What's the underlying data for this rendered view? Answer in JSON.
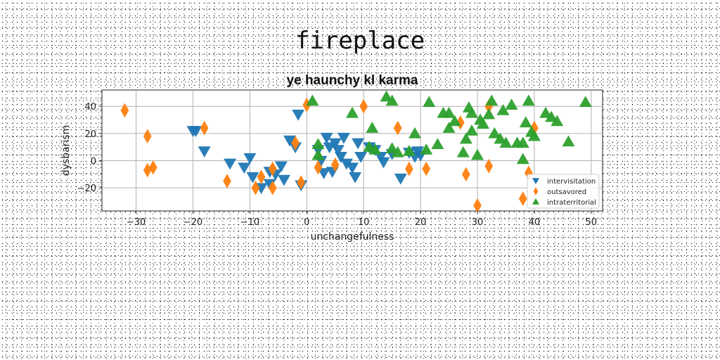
{
  "page": {
    "title": "fireplace"
  },
  "chart_data": {
    "type": "scatter",
    "title": "ye haunchy kl karma",
    "xlabel": "unchangefulness",
    "ylabel": "dysbarism",
    "xlim": [
      -36,
      52
    ],
    "ylim": [
      -37,
      52
    ],
    "xticks": [
      -30,
      -20,
      -10,
      0,
      10,
      20,
      30,
      40,
      50
    ],
    "yticks": [
      -20,
      0,
      20,
      40
    ],
    "grid": true,
    "legend_position": "lower-right",
    "series": [
      {
        "name": "intervisitation",
        "marker": "triangle-down",
        "color": "#1f77b4",
        "points": [
          [
            -20,
            22
          ],
          [
            -19.5,
            22
          ],
          [
            -18,
            7
          ],
          [
            -13.5,
            -2
          ],
          [
            -11,
            -5
          ],
          [
            -10,
            2
          ],
          [
            -9.5,
            -12
          ],
          [
            -8,
            -20
          ],
          [
            -6.5,
            -8
          ],
          [
            -6.5,
            -17
          ],
          [
            -5.5,
            -10
          ],
          [
            -4.5,
            -4
          ],
          [
            -4,
            -14
          ],
          [
            -3,
            15
          ],
          [
            -2,
            10
          ],
          [
            -1.5,
            34
          ],
          [
            -1,
            -18
          ],
          [
            2,
            8
          ],
          [
            2.5,
            0
          ],
          [
            3,
            -9
          ],
          [
            3.5,
            17
          ],
          [
            4,
            10
          ],
          [
            4.5,
            -8
          ],
          [
            5,
            13
          ],
          [
            5.5,
            8
          ],
          [
            6,
            3
          ],
          [
            6.5,
            17
          ],
          [
            7,
            -2
          ],
          [
            8,
            -5
          ],
          [
            8.5,
            -12
          ],
          [
            9,
            13
          ],
          [
            9.5,
            3
          ],
          [
            11,
            10
          ],
          [
            12,
            8
          ],
          [
            13,
            3
          ],
          [
            13.5,
            -1
          ],
          [
            15,
            5
          ],
          [
            16.5,
            -13
          ],
          [
            18,
            6
          ],
          [
            19,
            3
          ],
          [
            19.5,
            7
          ],
          [
            20,
            4
          ]
        ]
      },
      {
        "name": "outsavored",
        "marker": "diamond",
        "color": "#ff7f0e",
        "points": [
          [
            -32,
            37
          ],
          [
            -28,
            18
          ],
          [
            -28,
            -7
          ],
          [
            -27,
            -5
          ],
          [
            -18,
            24
          ],
          [
            -14,
            -15
          ],
          [
            -9,
            -20
          ],
          [
            -8,
            -12
          ],
          [
            -6,
            -6
          ],
          [
            -6,
            -20
          ],
          [
            -2,
            13
          ],
          [
            -1,
            -16
          ],
          [
            0,
            41
          ],
          [
            2,
            -5
          ],
          [
            5,
            -3
          ],
          [
            10,
            40
          ],
          [
            16,
            24
          ],
          [
            18,
            -6
          ],
          [
            21,
            -6
          ],
          [
            27,
            28
          ],
          [
            28,
            -10
          ],
          [
            30,
            -33
          ],
          [
            32,
            -4
          ],
          [
            32,
            40
          ],
          [
            38,
            -28
          ],
          [
            39,
            -9
          ],
          [
            40,
            24
          ]
        ]
      },
      {
        "name": "intraterritorial",
        "marker": "triangle-up",
        "color": "#2ca02c",
        "points": [
          [
            1,
            44
          ],
          [
            2,
            12
          ],
          [
            2,
            4
          ],
          [
            8,
            35
          ],
          [
            11,
            10
          ],
          [
            11.5,
            24
          ],
          [
            12,
            8
          ],
          [
            14,
            47
          ],
          [
            15,
            44
          ],
          [
            15,
            9
          ],
          [
            16,
            6
          ],
          [
            18,
            7
          ],
          [
            19,
            20
          ],
          [
            21,
            8
          ],
          [
            21.5,
            43
          ],
          [
            23,
            12
          ],
          [
            24,
            35
          ],
          [
            25,
            35
          ],
          [
            25,
            24
          ],
          [
            26,
            29
          ],
          [
            27.5,
            6
          ],
          [
            28,
            16
          ],
          [
            28.5,
            39
          ],
          [
            29,
            35
          ],
          [
            29,
            22
          ],
          [
            30,
            4
          ],
          [
            30.5,
            30
          ],
          [
            31,
            27
          ],
          [
            32,
            34
          ],
          [
            32.5,
            44
          ],
          [
            33,
            20
          ],
          [
            34,
            16
          ],
          [
            34.5,
            37
          ],
          [
            35,
            13
          ],
          [
            36,
            41
          ],
          [
            37,
            13
          ],
          [
            38,
            1
          ],
          [
            38,
            13
          ],
          [
            38.5,
            28
          ],
          [
            39,
            44
          ],
          [
            39.5,
            21
          ],
          [
            40,
            18
          ],
          [
            42,
            35
          ],
          [
            43,
            32
          ],
          [
            44,
            29
          ],
          [
            46,
            14
          ],
          [
            49,
            43
          ]
        ]
      }
    ]
  }
}
